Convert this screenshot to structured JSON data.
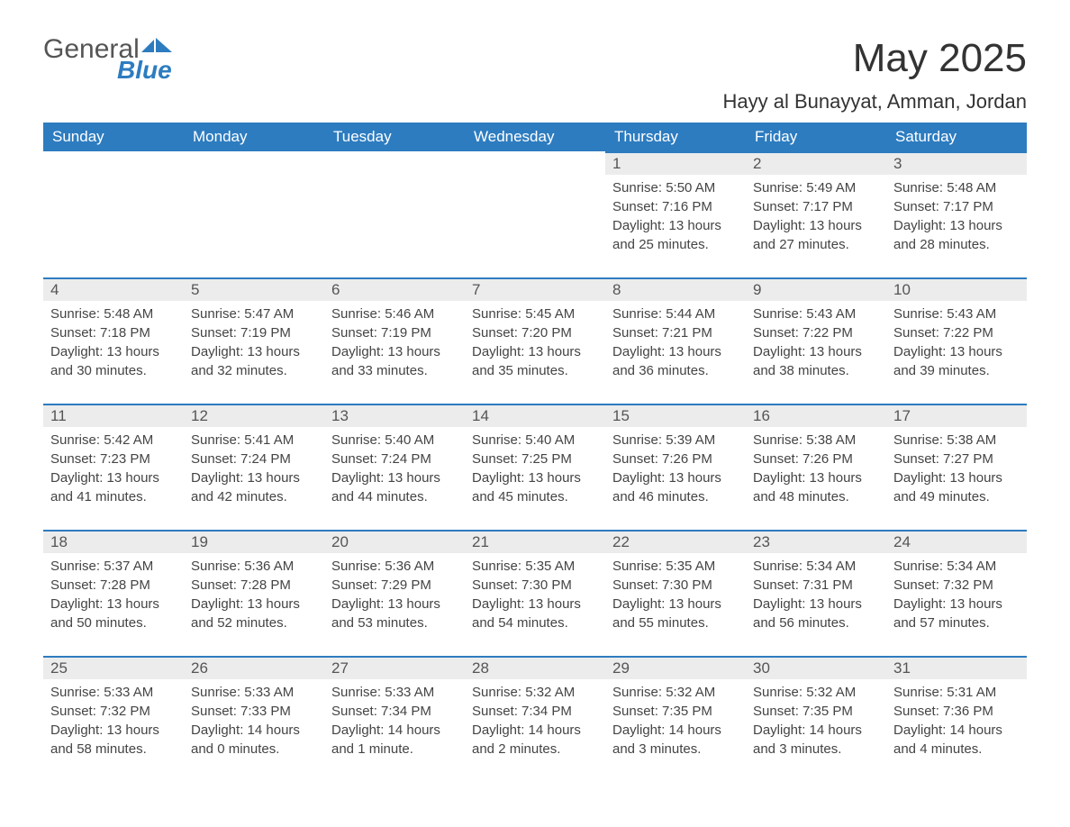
{
  "logo": {
    "text_top": "General",
    "text_bottom": "Blue",
    "icon_color": "#2d7cc0",
    "top_color": "#555555",
    "bottom_color": "#2d7cc0"
  },
  "header": {
    "month_title": "May 2025",
    "location": "Hayy al Bunayyat, Amman, Jordan"
  },
  "colors": {
    "header_bg": "#2d7cc0",
    "header_text": "#ffffff",
    "daynum_bg": "#ececec",
    "daynum_text": "#555555",
    "body_text": "#444444",
    "row_border": "#2d7cc0",
    "page_bg": "#ffffff"
  },
  "typography": {
    "month_title_fontsize": 44,
    "location_fontsize": 22,
    "header_fontsize": 17,
    "daynum_fontsize": 17,
    "body_fontsize": 15,
    "font_family": "Arial"
  },
  "calendar": {
    "type": "table",
    "columns": [
      "Sunday",
      "Monday",
      "Tuesday",
      "Wednesday",
      "Thursday",
      "Friday",
      "Saturday"
    ],
    "weeks": [
      [
        null,
        null,
        null,
        null,
        {
          "day": "1",
          "sunrise": "Sunrise: 5:50 AM",
          "sunset": "Sunset: 7:16 PM",
          "daylight": "Daylight: 13 hours and 25 minutes."
        },
        {
          "day": "2",
          "sunrise": "Sunrise: 5:49 AM",
          "sunset": "Sunset: 7:17 PM",
          "daylight": "Daylight: 13 hours and 27 minutes."
        },
        {
          "day": "3",
          "sunrise": "Sunrise: 5:48 AM",
          "sunset": "Sunset: 7:17 PM",
          "daylight": "Daylight: 13 hours and 28 minutes."
        }
      ],
      [
        {
          "day": "4",
          "sunrise": "Sunrise: 5:48 AM",
          "sunset": "Sunset: 7:18 PM",
          "daylight": "Daylight: 13 hours and 30 minutes."
        },
        {
          "day": "5",
          "sunrise": "Sunrise: 5:47 AM",
          "sunset": "Sunset: 7:19 PM",
          "daylight": "Daylight: 13 hours and 32 minutes."
        },
        {
          "day": "6",
          "sunrise": "Sunrise: 5:46 AM",
          "sunset": "Sunset: 7:19 PM",
          "daylight": "Daylight: 13 hours and 33 minutes."
        },
        {
          "day": "7",
          "sunrise": "Sunrise: 5:45 AM",
          "sunset": "Sunset: 7:20 PM",
          "daylight": "Daylight: 13 hours and 35 minutes."
        },
        {
          "day": "8",
          "sunrise": "Sunrise: 5:44 AM",
          "sunset": "Sunset: 7:21 PM",
          "daylight": "Daylight: 13 hours and 36 minutes."
        },
        {
          "day": "9",
          "sunrise": "Sunrise: 5:43 AM",
          "sunset": "Sunset: 7:22 PM",
          "daylight": "Daylight: 13 hours and 38 minutes."
        },
        {
          "day": "10",
          "sunrise": "Sunrise: 5:43 AM",
          "sunset": "Sunset: 7:22 PM",
          "daylight": "Daylight: 13 hours and 39 minutes."
        }
      ],
      [
        {
          "day": "11",
          "sunrise": "Sunrise: 5:42 AM",
          "sunset": "Sunset: 7:23 PM",
          "daylight": "Daylight: 13 hours and 41 minutes."
        },
        {
          "day": "12",
          "sunrise": "Sunrise: 5:41 AM",
          "sunset": "Sunset: 7:24 PM",
          "daylight": "Daylight: 13 hours and 42 minutes."
        },
        {
          "day": "13",
          "sunrise": "Sunrise: 5:40 AM",
          "sunset": "Sunset: 7:24 PM",
          "daylight": "Daylight: 13 hours and 44 minutes."
        },
        {
          "day": "14",
          "sunrise": "Sunrise: 5:40 AM",
          "sunset": "Sunset: 7:25 PM",
          "daylight": "Daylight: 13 hours and 45 minutes."
        },
        {
          "day": "15",
          "sunrise": "Sunrise: 5:39 AM",
          "sunset": "Sunset: 7:26 PM",
          "daylight": "Daylight: 13 hours and 46 minutes."
        },
        {
          "day": "16",
          "sunrise": "Sunrise: 5:38 AM",
          "sunset": "Sunset: 7:26 PM",
          "daylight": "Daylight: 13 hours and 48 minutes."
        },
        {
          "day": "17",
          "sunrise": "Sunrise: 5:38 AM",
          "sunset": "Sunset: 7:27 PM",
          "daylight": "Daylight: 13 hours and 49 minutes."
        }
      ],
      [
        {
          "day": "18",
          "sunrise": "Sunrise: 5:37 AM",
          "sunset": "Sunset: 7:28 PM",
          "daylight": "Daylight: 13 hours and 50 minutes."
        },
        {
          "day": "19",
          "sunrise": "Sunrise: 5:36 AM",
          "sunset": "Sunset: 7:28 PM",
          "daylight": "Daylight: 13 hours and 52 minutes."
        },
        {
          "day": "20",
          "sunrise": "Sunrise: 5:36 AM",
          "sunset": "Sunset: 7:29 PM",
          "daylight": "Daylight: 13 hours and 53 minutes."
        },
        {
          "day": "21",
          "sunrise": "Sunrise: 5:35 AM",
          "sunset": "Sunset: 7:30 PM",
          "daylight": "Daylight: 13 hours and 54 minutes."
        },
        {
          "day": "22",
          "sunrise": "Sunrise: 5:35 AM",
          "sunset": "Sunset: 7:30 PM",
          "daylight": "Daylight: 13 hours and 55 minutes."
        },
        {
          "day": "23",
          "sunrise": "Sunrise: 5:34 AM",
          "sunset": "Sunset: 7:31 PM",
          "daylight": "Daylight: 13 hours and 56 minutes."
        },
        {
          "day": "24",
          "sunrise": "Sunrise: 5:34 AM",
          "sunset": "Sunset: 7:32 PM",
          "daylight": "Daylight: 13 hours and 57 minutes."
        }
      ],
      [
        {
          "day": "25",
          "sunrise": "Sunrise: 5:33 AM",
          "sunset": "Sunset: 7:32 PM",
          "daylight": "Daylight: 13 hours and 58 minutes."
        },
        {
          "day": "26",
          "sunrise": "Sunrise: 5:33 AM",
          "sunset": "Sunset: 7:33 PM",
          "daylight": "Daylight: 14 hours and 0 minutes."
        },
        {
          "day": "27",
          "sunrise": "Sunrise: 5:33 AM",
          "sunset": "Sunset: 7:34 PM",
          "daylight": "Daylight: 14 hours and 1 minute."
        },
        {
          "day": "28",
          "sunrise": "Sunrise: 5:32 AM",
          "sunset": "Sunset: 7:34 PM",
          "daylight": "Daylight: 14 hours and 2 minutes."
        },
        {
          "day": "29",
          "sunrise": "Sunrise: 5:32 AM",
          "sunset": "Sunset: 7:35 PM",
          "daylight": "Daylight: 14 hours and 3 minutes."
        },
        {
          "day": "30",
          "sunrise": "Sunrise: 5:32 AM",
          "sunset": "Sunset: 7:35 PM",
          "daylight": "Daylight: 14 hours and 3 minutes."
        },
        {
          "day": "31",
          "sunrise": "Sunrise: 5:31 AM",
          "sunset": "Sunset: 7:36 PM",
          "daylight": "Daylight: 14 hours and 4 minutes."
        }
      ]
    ]
  }
}
